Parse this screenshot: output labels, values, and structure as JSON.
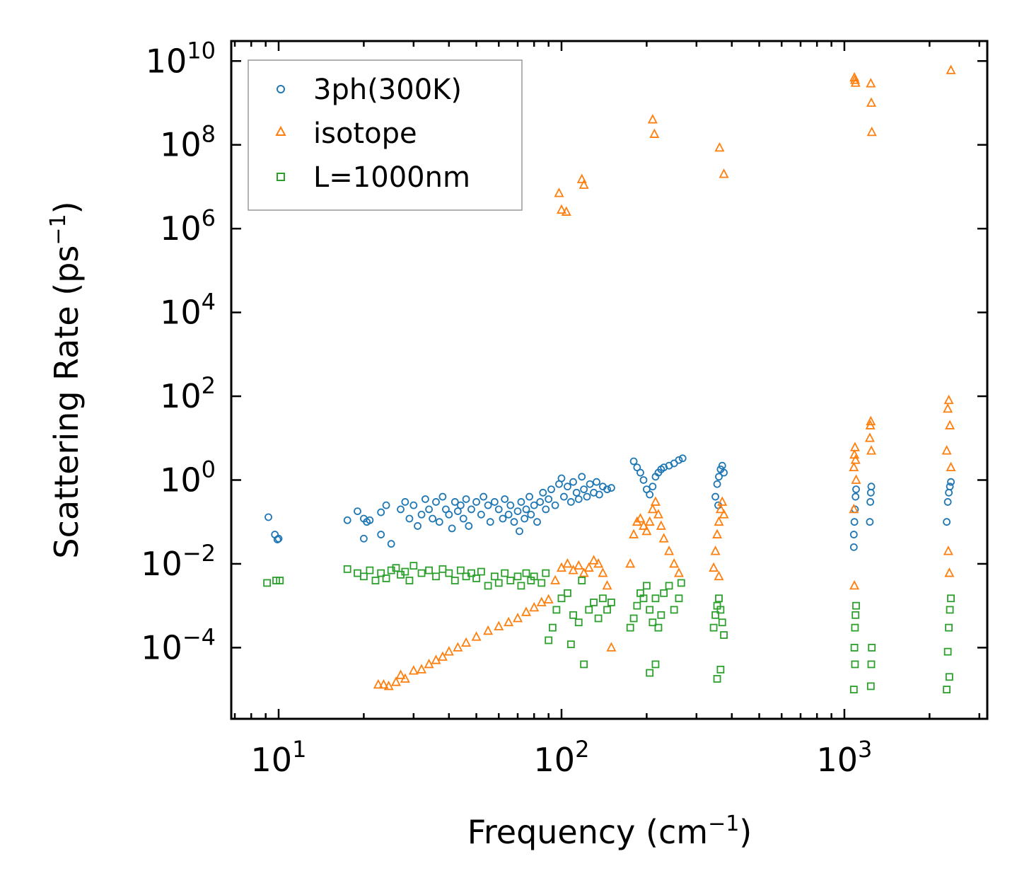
{
  "chart_data": {
    "type": "scatter",
    "xscale": "log",
    "yscale": "log",
    "xlabel": "Frequency (cm",
    "xlabel_sup": "−1",
    "xlabel_end": ")",
    "ylabel": "Scattering Rate (ps",
    "ylabel_sup": "−1",
    "ylabel_end": ")",
    "xlim": [
      6.8,
      3200
    ],
    "ylim": [
      2e-06,
      30000000000
    ],
    "legend_position": "top-left",
    "x_ticks": [
      {
        "value": 10,
        "base": "10",
        "exp": "1"
      },
      {
        "value": 100,
        "base": "10",
        "exp": "2"
      },
      {
        "value": 1000,
        "base": "10",
        "exp": "3"
      }
    ],
    "y_ticks": [
      {
        "value": 0.0001,
        "base": "10",
        "exp": "−4"
      },
      {
        "value": 0.01,
        "base": "10",
        "exp": "−2"
      },
      {
        "value": 1,
        "base": "10",
        "exp": "0"
      },
      {
        "value": 100,
        "base": "10",
        "exp": "2"
      },
      {
        "value": 10000,
        "base": "10",
        "exp": "4"
      },
      {
        "value": 1000000,
        "base": "10",
        "exp": "6"
      },
      {
        "value": 100000000,
        "base": "10",
        "exp": "8"
      },
      {
        "value": 10000000000,
        "base": "10",
        "exp": "10"
      }
    ],
    "series": [
      {
        "name": "3ph(300K)",
        "marker": "circle",
        "color": "#1f77b4",
        "points": [
          [
            9.2,
            0.13
          ],
          [
            9.7,
            0.05
          ],
          [
            9.9,
            0.038
          ],
          [
            10.0,
            0.04
          ],
          [
            17.5,
            0.11
          ],
          [
            19,
            0.18
          ],
          [
            20,
            0.12
          ],
          [
            20.5,
            0.1
          ],
          [
            21,
            0.11
          ],
          [
            20,
            0.04
          ],
          [
            23,
            0.17
          ],
          [
            24,
            0.25
          ],
          [
            23,
            0.05
          ],
          [
            25,
            0.03
          ],
          [
            27,
            0.2
          ],
          [
            28,
            0.3
          ],
          [
            29,
            0.12
          ],
          [
            30,
            0.25
          ],
          [
            31,
            0.08
          ],
          [
            32,
            0.15
          ],
          [
            33,
            0.35
          ],
          [
            34,
            0.2
          ],
          [
            35,
            0.12
          ],
          [
            36,
            0.3
          ],
          [
            37,
            0.1
          ],
          [
            38,
            0.4
          ],
          [
            39,
            0.2
          ],
          [
            40,
            0.15
          ],
          [
            41,
            0.07
          ],
          [
            42,
            0.3
          ],
          [
            43,
            0.18
          ],
          [
            44,
            0.25
          ],
          [
            45,
            0.12
          ],
          [
            46,
            0.35
          ],
          [
            47,
            0.08
          ],
          [
            48,
            0.2
          ],
          [
            50,
            0.3
          ],
          [
            52,
            0.15
          ],
          [
            53,
            0.4
          ],
          [
            55,
            0.25
          ],
          [
            56,
            0.1
          ],
          [
            58,
            0.3
          ],
          [
            60,
            0.2
          ],
          [
            62,
            0.12
          ],
          [
            63,
            0.35
          ],
          [
            65,
            0.15
          ],
          [
            66,
            0.25
          ],
          [
            68,
            0.1
          ],
          [
            70,
            0.18
          ],
          [
            71,
            0.06
          ],
          [
            72,
            0.3
          ],
          [
            74,
            0.12
          ],
          [
            75,
            0.2
          ],
          [
            77,
            0.4
          ],
          [
            78,
            0.15
          ],
          [
            80,
            0.25
          ],
          [
            82,
            0.1
          ],
          [
            84,
            0.3
          ],
          [
            86,
            0.5
          ],
          [
            88,
            0.2
          ],
          [
            90,
            0.35
          ],
          [
            92,
            0.6
          ],
          [
            95,
            0.25
          ],
          [
            98,
            0.8
          ],
          [
            100,
            1.1
          ],
          [
            102,
            0.4
          ],
          [
            105,
            0.7
          ],
          [
            108,
            0.3
          ],
          [
            110,
            0.9
          ],
          [
            113,
            0.5
          ],
          [
            115,
            0.35
          ],
          [
            118,
            1.2
          ],
          [
            120,
            0.6
          ],
          [
            123,
            0.4
          ],
          [
            126,
            0.8
          ],
          [
            130,
            0.5
          ],
          [
            133,
            0.9
          ],
          [
            136,
            0.45
          ],
          [
            140,
            0.7
          ],
          [
            145,
            0.6
          ],
          [
            150,
            0.65
          ],
          [
            180,
            2.8
          ],
          [
            185,
            2.0
          ],
          [
            190,
            1.5
          ],
          [
            195,
            1.0
          ],
          [
            200,
            0.6
          ],
          [
            205,
            0.45
          ],
          [
            210,
            0.7
          ],
          [
            215,
            1.2
          ],
          [
            220,
            1.5
          ],
          [
            225,
            1.8
          ],
          [
            230,
            2.0
          ],
          [
            240,
            2.2
          ],
          [
            250,
            2.5
          ],
          [
            260,
            3.0
          ],
          [
            268,
            3.3
          ],
          [
            350,
            0.4
          ],
          [
            355,
            0.8
          ],
          [
            360,
            1.2
          ],
          [
            365,
            1.8
          ],
          [
            370,
            2.2
          ],
          [
            375,
            1.5
          ],
          [
            358,
            0.25
          ],
          [
            1080,
            0.05
          ],
          [
            1085,
            0.1
          ],
          [
            1090,
            0.2
          ],
          [
            1095,
            0.4
          ],
          [
            1100,
            0.6
          ],
          [
            1080,
            0.025
          ],
          [
            1230,
            0.1
          ],
          [
            1235,
            0.3
          ],
          [
            1240,
            0.5
          ],
          [
            1245,
            0.7
          ],
          [
            2300,
            0.1
          ],
          [
            2320,
            0.3
          ],
          [
            2340,
            0.5
          ],
          [
            2360,
            0.7
          ],
          [
            2380,
            0.9
          ]
        ]
      },
      {
        "name": "isotope",
        "marker": "triangle",
        "color": "#ff7f0e",
        "points": [
          [
            22.5,
            1.3e-05
          ],
          [
            23.5,
            1.3e-05
          ],
          [
            24.5,
            1.2e-05
          ],
          [
            26,
            1.5e-05
          ],
          [
            27,
            2.2e-05
          ],
          [
            28,
            1.8e-05
          ],
          [
            30,
            2.8e-05
          ],
          [
            32,
            3e-05
          ],
          [
            34,
            4e-05
          ],
          [
            36,
            5e-05
          ],
          [
            38,
            6e-05
          ],
          [
            40,
            8e-05
          ],
          [
            43,
            0.0001
          ],
          [
            46,
            0.00013
          ],
          [
            50,
            0.00018
          ],
          [
            55,
            0.00025
          ],
          [
            60,
            0.00032
          ],
          [
            65,
            0.0004
          ],
          [
            70,
            0.0005
          ],
          [
            75,
            0.0007
          ],
          [
            80,
            0.0009
          ],
          [
            85,
            0.0012
          ],
          [
            90,
            0.0014
          ],
          [
            95,
            0.004
          ],
          [
            100,
            0.008
          ],
          [
            105,
            0.01
          ],
          [
            110,
            0.007
          ],
          [
            115,
            0.009
          ],
          [
            120,
            0.006
          ],
          [
            125,
            0.008
          ],
          [
            130,
            0.012
          ],
          [
            135,
            0.01
          ],
          [
            140,
            0.006
          ],
          [
            145,
            0.003
          ],
          [
            150,
            0.0001
          ],
          [
            175,
            0.01
          ],
          [
            180,
            0.05
          ],
          [
            185,
            0.1
          ],
          [
            190,
            0.12
          ],
          [
            195,
            0.08
          ],
          [
            200,
            0.06
          ],
          [
            205,
            0.1
          ],
          [
            210,
            0.2
          ],
          [
            215,
            0.3
          ],
          [
            220,
            0.15
          ],
          [
            225,
            0.08
          ],
          [
            230,
            0.04
          ],
          [
            240,
            0.02
          ],
          [
            250,
            0.01
          ],
          [
            260,
            0.006
          ],
          [
            345,
            0.008
          ],
          [
            350,
            0.02
          ],
          [
            355,
            0.05
          ],
          [
            360,
            0.1
          ],
          [
            365,
            0.2
          ],
          [
            370,
            0.3
          ],
          [
            375,
            0.15
          ],
          [
            360,
            0.005
          ],
          [
            1080,
            2
          ],
          [
            1085,
            4
          ],
          [
            1090,
            6
          ],
          [
            1095,
            3
          ],
          [
            1100,
            1
          ],
          [
            1080,
            0.2
          ],
          [
            1085,
            0.003
          ],
          [
            1230,
            10
          ],
          [
            1235,
            20
          ],
          [
            1240,
            25
          ],
          [
            1245,
            5
          ],
          [
            2300,
            5
          ],
          [
            2320,
            50
          ],
          [
            2340,
            80
          ],
          [
            2360,
            20
          ],
          [
            2380,
            2
          ],
          [
            2330,
            0.02
          ],
          [
            2350,
            0.006
          ],
          [
            98,
            7000000
          ],
          [
            100,
            2800000
          ],
          [
            104,
            2500000
          ],
          [
            118,
            15000000
          ],
          [
            120,
            11000000
          ],
          [
            210,
            400000000
          ],
          [
            213,
            180000000
          ],
          [
            362,
            85000000
          ],
          [
            375,
            20000000
          ],
          [
            1085,
            4000000000
          ],
          [
            1090,
            3500000000
          ],
          [
            1095,
            3000000000
          ],
          [
            1240,
            2900000000
          ],
          [
            1245,
            1000000000
          ],
          [
            1250,
            200000000
          ],
          [
            2380,
            6000000000
          ]
        ]
      },
      {
        "name": "L=1000nm",
        "marker": "square",
        "color": "#2ca02c",
        "points": [
          [
            9.1,
            0.0035
          ],
          [
            9.8,
            0.004
          ],
          [
            10.1,
            0.004
          ],
          [
            17.5,
            0.0075
          ],
          [
            19,
            0.006
          ],
          [
            20,
            0.005
          ],
          [
            21,
            0.007
          ],
          [
            22,
            0.004
          ],
          [
            23,
            0.006
          ],
          [
            24,
            0.0045
          ],
          [
            25,
            0.007
          ],
          [
            26,
            0.008
          ],
          [
            27,
            0.0055
          ],
          [
            28,
            0.0065
          ],
          [
            29,
            0.004
          ],
          [
            30,
            0.009
          ],
          [
            32,
            0.006
          ],
          [
            34,
            0.007
          ],
          [
            36,
            0.005
          ],
          [
            38,
            0.0075
          ],
          [
            40,
            0.006
          ],
          [
            42,
            0.004
          ],
          [
            44,
            0.007
          ],
          [
            46,
            0.005
          ],
          [
            48,
            0.006
          ],
          [
            50,
            0.0045
          ],
          [
            52,
            0.0065
          ],
          [
            55,
            0.003
          ],
          [
            58,
            0.005
          ],
          [
            60,
            0.0035
          ],
          [
            63,
            0.006
          ],
          [
            66,
            0.004
          ],
          [
            70,
            0.005
          ],
          [
            72,
            0.003
          ],
          [
            75,
            0.006
          ],
          [
            78,
            0.004
          ],
          [
            80,
            0.005
          ],
          [
            85,
            0.0035
          ],
          [
            88,
            0.006
          ],
          [
            90,
            0.00015
          ],
          [
            93,
            0.0003
          ],
          [
            96,
            0.0008
          ],
          [
            100,
            0.0015
          ],
          [
            105,
            0.002
          ],
          [
            108,
            0.00012
          ],
          [
            110,
            0.0006
          ],
          [
            115,
            0.0004
          ],
          [
            118,
            0.004
          ],
          [
            120,
            4e-05
          ],
          [
            125,
            0.0008
          ],
          [
            130,
            0.0012
          ],
          [
            135,
            0.0005
          ],
          [
            140,
            0.0015
          ],
          [
            145,
            0.0008
          ],
          [
            150,
            0.0012
          ],
          [
            175,
            0.0003
          ],
          [
            180,
            0.0005
          ],
          [
            185,
            0.001
          ],
          [
            190,
            0.002
          ],
          [
            195,
            0.0015
          ],
          [
            200,
            0.003
          ],
          [
            205,
            0.0008
          ],
          [
            210,
            0.0004
          ],
          [
            215,
            0.0015
          ],
          [
            220,
            0.0003
          ],
          [
            225,
            0.0006
          ],
          [
            230,
            0.002
          ],
          [
            240,
            0.003
          ],
          [
            250,
            0.0008
          ],
          [
            260,
            0.0015
          ],
          [
            265,
            0.0035
          ],
          [
            205,
            2.5e-05
          ],
          [
            215,
            4e-05
          ],
          [
            345,
            0.0003
          ],
          [
            350,
            0.0006
          ],
          [
            355,
            0.001
          ],
          [
            360,
            0.0015
          ],
          [
            365,
            0.0008
          ],
          [
            370,
            0.0004
          ],
          [
            375,
            0.0002
          ],
          [
            355,
            1.8e-05
          ],
          [
            365,
            3e-05
          ],
          [
            1080,
            1e-05
          ],
          [
            1085,
            0.0001
          ],
          [
            1090,
            0.0003
          ],
          [
            1095,
            0.0006
          ],
          [
            1100,
            0.001
          ],
          [
            1090,
            4e-05
          ],
          [
            1240,
            1.2e-05
          ],
          [
            1245,
            4e-05
          ],
          [
            1250,
            0.0001
          ],
          [
            2300,
            1e-05
          ],
          [
            2320,
            8e-05
          ],
          [
            2340,
            0.0003
          ],
          [
            2360,
            0.0008
          ],
          [
            2380,
            0.0015
          ],
          [
            2350,
            2e-05
          ]
        ]
      }
    ]
  }
}
